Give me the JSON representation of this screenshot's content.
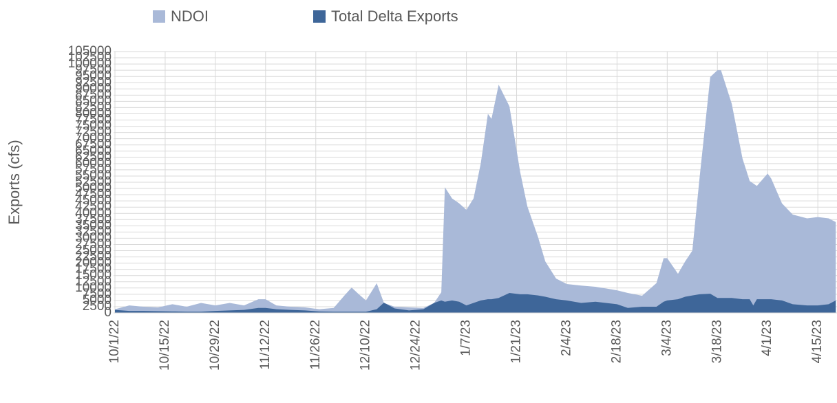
{
  "chart_data": {
    "type": "area",
    "y_label": "Exports (cfs)",
    "x": [
      "10/1/22",
      "10/5/22",
      "10/9/22",
      "10/13/22",
      "10/17/22",
      "10/21/22",
      "10/25/22",
      "10/29/22",
      "11/2/22",
      "11/6/22",
      "11/10/22",
      "11/12/22",
      "11/15/22",
      "11/19/22",
      "11/23/22",
      "11/27/22",
      "12/1/22",
      "12/4/22",
      "12/6/22",
      "12/8/22",
      "12/10/22",
      "12/13/22",
      "12/15/22",
      "12/18/22",
      "12/22/22",
      "12/26/22",
      "12/29/22",
      "12/31/22",
      "1/1/23",
      "1/3/23",
      "1/5/23",
      "1/7/23",
      "1/9/23",
      "1/11/23",
      "1/13/23",
      "1/14/23",
      "1/16/23",
      "1/19/23",
      "1/22/23",
      "1/24/23",
      "1/27/23",
      "1/29/23",
      "2/1/23",
      "2/4/23",
      "2/8/23",
      "2/12/23",
      "2/18/23",
      "2/21/23",
      "2/25/23",
      "3/1/23",
      "3/3/23",
      "3/4/23",
      "3/7/23",
      "3/9/23",
      "3/11/23",
      "3/13/23",
      "3/16/23",
      "3/18/23",
      "3/19/23",
      "3/22/23",
      "3/25/23",
      "3/27/23",
      "3/28/23",
      "3/29/23",
      "4/1/23",
      "4/2/23",
      "4/5/23",
      "4/8/23",
      "4/12/23",
      "4/15/23",
      "4/18/23",
      "4/20/23"
    ],
    "series": [
      {
        "name": "NDOI",
        "color": "#a9b9d8",
        "values": [
          1500,
          3000,
          2500,
          2200,
          3500,
          2500,
          4000,
          3000,
          4000,
          3000,
          5500,
          5500,
          3000,
          2500,
          2200,
          1500,
          2000,
          7000,
          10200,
          7500,
          5000,
          11900,
          4000,
          2500,
          2200,
          2000,
          4000,
          8300,
          50500,
          46000,
          44000,
          41400,
          46000,
          60000,
          80000,
          78000,
          91700,
          83000,
          56600,
          42800,
          30400,
          20700,
          13800,
          11600,
          11000,
          10500,
          9100,
          8000,
          6900,
          12000,
          22000,
          22000,
          15700,
          20700,
          25000,
          54000,
          94800,
          97500,
          97500,
          84000,
          62000,
          53000,
          52000,
          51000,
          56000,
          54000,
          44000,
          39500,
          38000,
          38500,
          38000,
          36500
        ]
      },
      {
        "name": "Total Delta Exports",
        "color": "#3e6699",
        "values": [
          1200,
          800,
          800,
          700,
          600,
          500,
          500,
          800,
          1000,
          1200,
          2000,
          2000,
          1500,
          1200,
          1000,
          600,
          500,
          500,
          500,
          500,
          500,
          1500,
          4100,
          1800,
          1000,
          1500,
          4000,
          5000,
          4500,
          5000,
          4500,
          3000,
          4000,
          5000,
          5500,
          5500,
          6000,
          8000,
          7500,
          7500,
          7000,
          6500,
          5500,
          5000,
          4000,
          4500,
          3500,
          2000,
          2500,
          2500,
          4500,
          5000,
          5500,
          6500,
          7000,
          7500,
          7700,
          6000,
          6000,
          6000,
          5500,
          5500,
          3000,
          5500,
          5500,
          5500,
          5000,
          3500,
          3000,
          3000,
          3500,
          5000
        ]
      }
    ],
    "xticks": [
      "10/1/22",
      "10/15/22",
      "10/29/22",
      "11/12/22",
      "11/26/22",
      "12/10/22",
      "12/24/22",
      "1/7/23",
      "1/21/23",
      "2/4/23",
      "2/18/23",
      "3/4/23",
      "3/18/23",
      "4/1/23",
      "4/15/23"
    ],
    "ylim": [
      0,
      105000
    ],
    "yticks": [
      0,
      2500,
      5000,
      7500,
      10000,
      12500,
      15000,
      17500,
      20000,
      22500,
      25000,
      27500,
      30000,
      32500,
      35000,
      37500,
      40000,
      42500,
      45000,
      47500,
      50000,
      52500,
      55000,
      57500,
      60000,
      62500,
      65000,
      67500,
      70000,
      72500,
      75000,
      77500,
      80000,
      82500,
      85000,
      87500,
      90000,
      92500,
      95000,
      97500,
      100000,
      102500,
      105000
    ],
    "grid": true,
    "legend": "top"
  }
}
